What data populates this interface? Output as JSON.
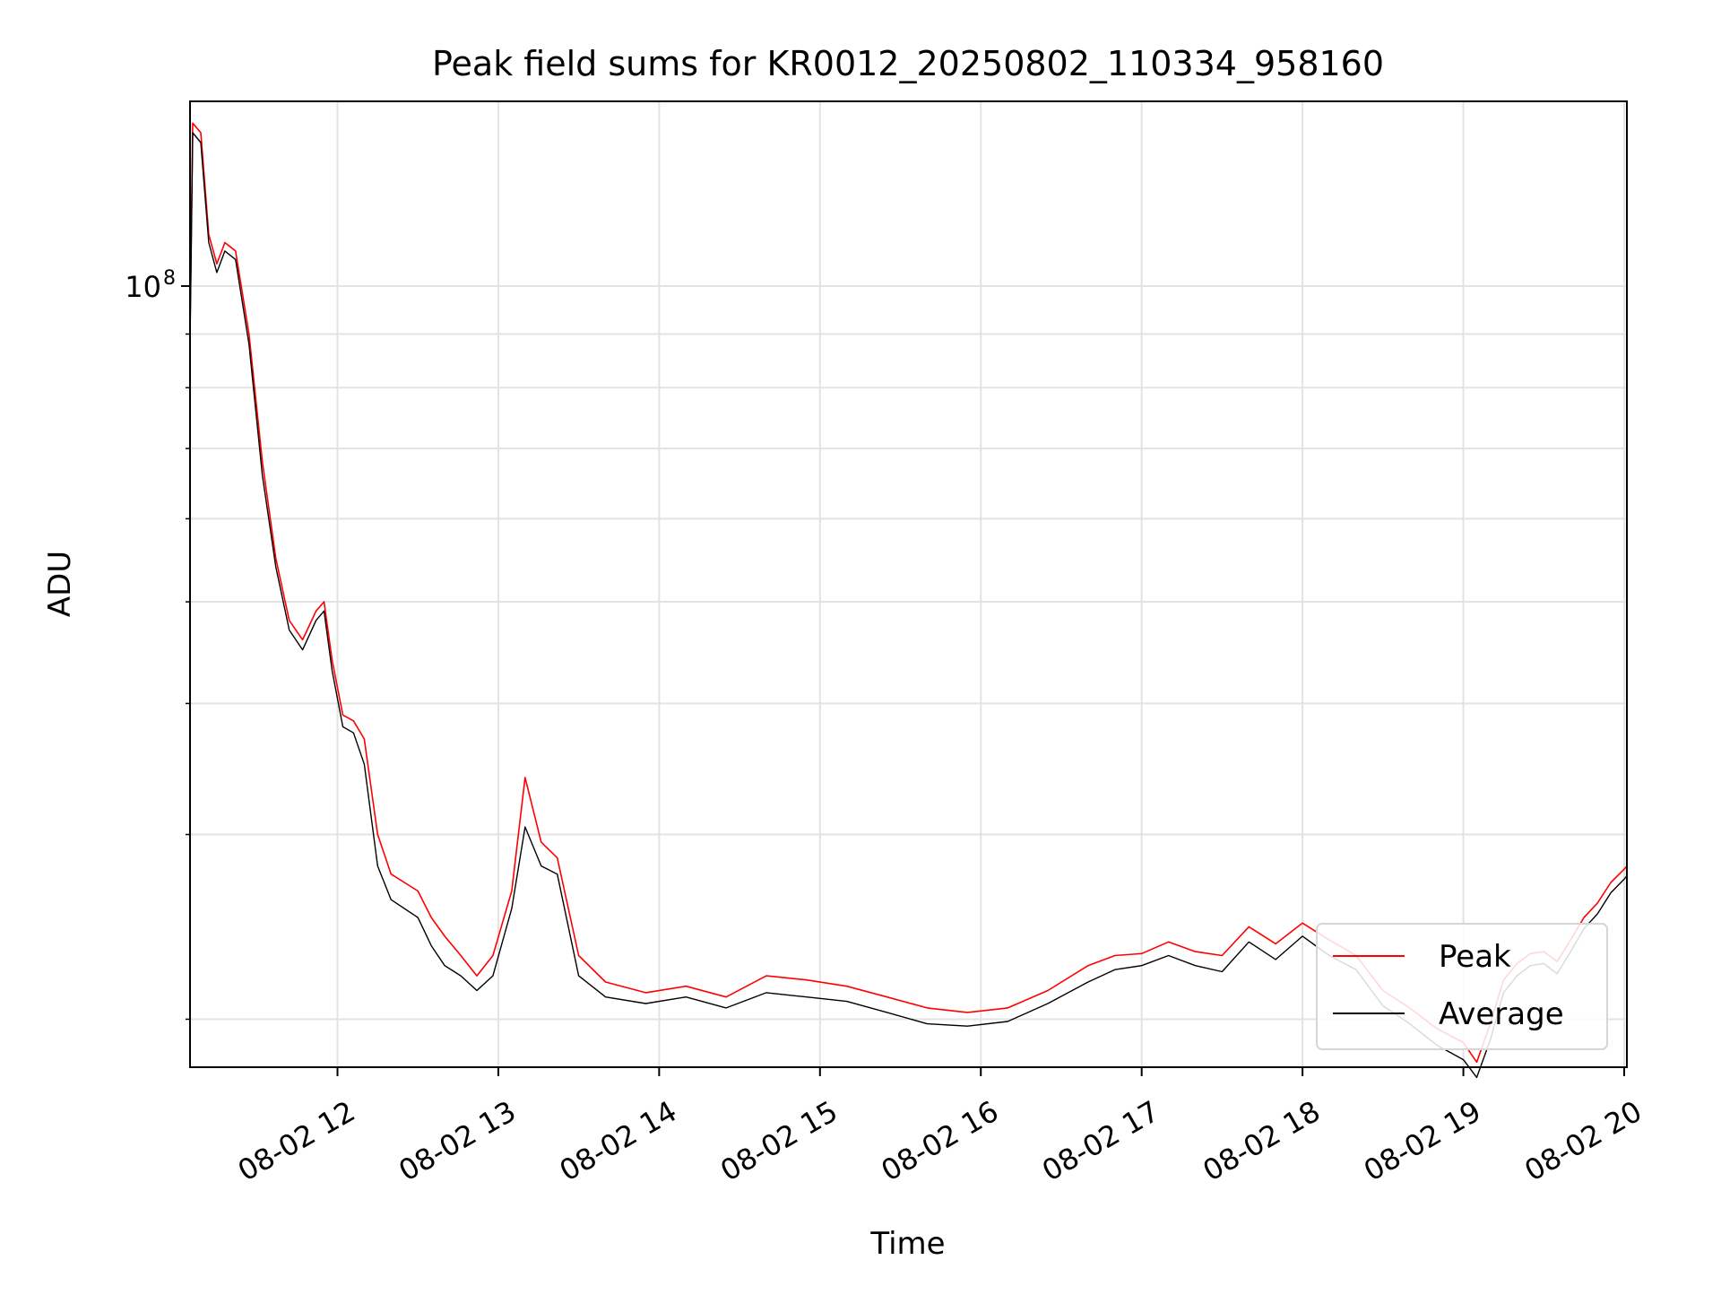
{
  "chart_data": {
    "type": "line",
    "title": "Peak field sums for KR0012_20250802_110334_958160",
    "xlabel": "Time",
    "ylabel": "ADU",
    "y_scale": "log",
    "grid": true,
    "legend_position": "lower-right",
    "xlim": [
      "2025-08-02 11:05",
      "2025-08-02 20:01"
    ],
    "ylim": [
      18000000,
      150000000
    ],
    "x_ticks": [
      {
        "time": "2025-08-02 12:00",
        "label": "08-02 12"
      },
      {
        "time": "2025-08-02 13:00",
        "label": "08-02 13"
      },
      {
        "time": "2025-08-02 14:00",
        "label": "08-02 14"
      },
      {
        "time": "2025-08-02 15:00",
        "label": "08-02 15"
      },
      {
        "time": "2025-08-02 16:00",
        "label": "08-02 16"
      },
      {
        "time": "2025-08-02 17:00",
        "label": "08-02 17"
      },
      {
        "time": "2025-08-02 18:00",
        "label": "08-02 18"
      },
      {
        "time": "2025-08-02 19:00",
        "label": "08-02 19"
      },
      {
        "time": "2025-08-02 20:00",
        "label": "08-02 20"
      }
    ],
    "y_major_ticks": [
      {
        "value": 100000000,
        "base": "10",
        "exponent": "8"
      }
    ],
    "y_minor_ticks": [
      20000000,
      30000000,
      40000000,
      50000000,
      60000000,
      70000000,
      80000000,
      90000000
    ],
    "series": [
      {
        "name": "Peak",
        "color": "#ff0000",
        "points": [
          [
            "2025-08-02 11:05",
            90000000
          ],
          [
            "2025-08-02 11:06",
            143000000
          ],
          [
            "2025-08-02 11:09",
            140000000
          ],
          [
            "2025-08-02 11:12",
            112000000
          ],
          [
            "2025-08-02 11:15",
            105000000
          ],
          [
            "2025-08-02 11:18",
            110000000
          ],
          [
            "2025-08-02 11:22",
            108000000
          ],
          [
            "2025-08-02 11:27",
            90000000
          ],
          [
            "2025-08-02 11:32",
            68000000
          ],
          [
            "2025-08-02 11:37",
            55000000
          ],
          [
            "2025-08-02 11:42",
            48000000
          ],
          [
            "2025-08-02 11:47",
            46000000
          ],
          [
            "2025-08-02 11:52",
            49000000
          ],
          [
            "2025-08-02 11:55",
            50000000
          ],
          [
            "2025-08-02 11:58",
            44000000
          ],
          [
            "2025-08-02 12:02",
            39000000
          ],
          [
            "2025-08-02 12:06",
            38500000
          ],
          [
            "2025-08-02 12:10",
            37000000
          ],
          [
            "2025-08-02 12:15",
            30000000
          ],
          [
            "2025-08-02 12:20",
            27500000
          ],
          [
            "2025-08-02 12:30",
            26500000
          ],
          [
            "2025-08-02 12:35",
            25000000
          ],
          [
            "2025-08-02 12:40",
            24000000
          ],
          [
            "2025-08-02 12:46",
            23000000
          ],
          [
            "2025-08-02 12:52",
            22000000
          ],
          [
            "2025-08-02 12:58",
            23000000
          ],
          [
            "2025-08-02 13:05",
            26500000
          ],
          [
            "2025-08-02 13:10",
            34000000
          ],
          [
            "2025-08-02 13:16",
            29500000
          ],
          [
            "2025-08-02 13:22",
            28500000
          ],
          [
            "2025-08-02 13:30",
            23000000
          ],
          [
            "2025-08-02 13:40",
            21700000
          ],
          [
            "2025-08-02 13:55",
            21200000
          ],
          [
            "2025-08-02 14:10",
            21500000
          ],
          [
            "2025-08-02 14:25",
            21000000
          ],
          [
            "2025-08-02 14:40",
            22000000
          ],
          [
            "2025-08-02 14:55",
            21800000
          ],
          [
            "2025-08-02 15:10",
            21500000
          ],
          [
            "2025-08-02 15:25",
            21000000
          ],
          [
            "2025-08-02 15:40",
            20500000
          ],
          [
            "2025-08-02 15:55",
            20300000
          ],
          [
            "2025-08-02 16:10",
            20500000
          ],
          [
            "2025-08-02 16:25",
            21300000
          ],
          [
            "2025-08-02 16:40",
            22500000
          ],
          [
            "2025-08-02 16:50",
            23000000
          ],
          [
            "2025-08-02 17:00",
            23100000
          ],
          [
            "2025-08-02 17:10",
            23700000
          ],
          [
            "2025-08-02 17:20",
            23200000
          ],
          [
            "2025-08-02 17:30",
            23000000
          ],
          [
            "2025-08-02 17:40",
            24500000
          ],
          [
            "2025-08-02 17:50",
            23600000
          ],
          [
            "2025-08-02 18:00",
            24700000
          ],
          [
            "2025-08-02 18:10",
            23800000
          ],
          [
            "2025-08-02 18:20",
            23000000
          ],
          [
            "2025-08-02 18:30",
            21300000
          ],
          [
            "2025-08-02 18:40",
            20500000
          ],
          [
            "2025-08-02 18:50",
            19600000
          ],
          [
            "2025-08-02 19:00",
            19000000
          ],
          [
            "2025-08-02 19:05",
            18200000
          ],
          [
            "2025-08-02 19:10",
            19800000
          ],
          [
            "2025-08-02 19:15",
            21800000
          ],
          [
            "2025-08-02 19:20",
            22600000
          ],
          [
            "2025-08-02 19:25",
            23100000
          ],
          [
            "2025-08-02 19:30",
            23200000
          ],
          [
            "2025-08-02 19:35",
            22700000
          ],
          [
            "2025-08-02 19:40",
            23800000
          ],
          [
            "2025-08-02 19:45",
            25000000
          ],
          [
            "2025-08-02 19:50",
            25800000
          ],
          [
            "2025-08-02 19:55",
            27000000
          ],
          [
            "2025-08-02 20:00",
            27800000
          ],
          [
            "2025-08-02 20:01",
            28000000
          ]
        ]
      },
      {
        "name": "Average",
        "color": "#000000",
        "points": [
          [
            "2025-08-02 11:05",
            88000000
          ],
          [
            "2025-08-02 11:06",
            140000000
          ],
          [
            "2025-08-02 11:09",
            137000000
          ],
          [
            "2025-08-02 11:12",
            110000000
          ],
          [
            "2025-08-02 11:15",
            103000000
          ],
          [
            "2025-08-02 11:18",
            108000000
          ],
          [
            "2025-08-02 11:22",
            106000000
          ],
          [
            "2025-08-02 11:27",
            88000000
          ],
          [
            "2025-08-02 11:32",
            66000000
          ],
          [
            "2025-08-02 11:37",
            54000000
          ],
          [
            "2025-08-02 11:42",
            47000000
          ],
          [
            "2025-08-02 11:47",
            45000000
          ],
          [
            "2025-08-02 11:52",
            48000000
          ],
          [
            "2025-08-02 11:55",
            49000000
          ],
          [
            "2025-08-02 11:58",
            43000000
          ],
          [
            "2025-08-02 12:02",
            38000000
          ],
          [
            "2025-08-02 12:06",
            37500000
          ],
          [
            "2025-08-02 12:10",
            35000000
          ],
          [
            "2025-08-02 12:15",
            28000000
          ],
          [
            "2025-08-02 12:20",
            26000000
          ],
          [
            "2025-08-02 12:30",
            25000000
          ],
          [
            "2025-08-02 12:35",
            23500000
          ],
          [
            "2025-08-02 12:40",
            22500000
          ],
          [
            "2025-08-02 12:46",
            22000000
          ],
          [
            "2025-08-02 12:52",
            21300000
          ],
          [
            "2025-08-02 12:58",
            22000000
          ],
          [
            "2025-08-02 13:05",
            25500000
          ],
          [
            "2025-08-02 13:10",
            30500000
          ],
          [
            "2025-08-02 13:16",
            28000000
          ],
          [
            "2025-08-02 13:22",
            27500000
          ],
          [
            "2025-08-02 13:30",
            22000000
          ],
          [
            "2025-08-02 13:40",
            21000000
          ],
          [
            "2025-08-02 13:55",
            20700000
          ],
          [
            "2025-08-02 14:10",
            21000000
          ],
          [
            "2025-08-02 14:25",
            20500000
          ],
          [
            "2025-08-02 14:40",
            21200000
          ],
          [
            "2025-08-02 14:55",
            21000000
          ],
          [
            "2025-08-02 15:10",
            20800000
          ],
          [
            "2025-08-02 15:25",
            20300000
          ],
          [
            "2025-08-02 15:40",
            19800000
          ],
          [
            "2025-08-02 15:55",
            19700000
          ],
          [
            "2025-08-02 16:10",
            19900000
          ],
          [
            "2025-08-02 16:25",
            20700000
          ],
          [
            "2025-08-02 16:40",
            21700000
          ],
          [
            "2025-08-02 16:50",
            22300000
          ],
          [
            "2025-08-02 17:00",
            22500000
          ],
          [
            "2025-08-02 17:10",
            23000000
          ],
          [
            "2025-08-02 17:20",
            22500000
          ],
          [
            "2025-08-02 17:30",
            22200000
          ],
          [
            "2025-08-02 17:40",
            23700000
          ],
          [
            "2025-08-02 17:50",
            22800000
          ],
          [
            "2025-08-02 18:00",
            24000000
          ],
          [
            "2025-08-02 18:10",
            23000000
          ],
          [
            "2025-08-02 18:20",
            22300000
          ],
          [
            "2025-08-02 18:30",
            20600000
          ],
          [
            "2025-08-02 18:40",
            19800000
          ],
          [
            "2025-08-02 18:50",
            18900000
          ],
          [
            "2025-08-02 19:00",
            18300000
          ],
          [
            "2025-08-02 19:05",
            17600000
          ],
          [
            "2025-08-02 19:10",
            19100000
          ],
          [
            "2025-08-02 19:15",
            21200000
          ],
          [
            "2025-08-02 19:20",
            22000000
          ],
          [
            "2025-08-02 19:25",
            22500000
          ],
          [
            "2025-08-02 19:30",
            22600000
          ],
          [
            "2025-08-02 19:35",
            22100000
          ],
          [
            "2025-08-02 19:40",
            23200000
          ],
          [
            "2025-08-02 19:45",
            24400000
          ],
          [
            "2025-08-02 19:50",
            25200000
          ],
          [
            "2025-08-02 19:55",
            26400000
          ],
          [
            "2025-08-02 20:00",
            27200000
          ],
          [
            "2025-08-02 20:01",
            27400000
          ]
        ]
      }
    ]
  }
}
